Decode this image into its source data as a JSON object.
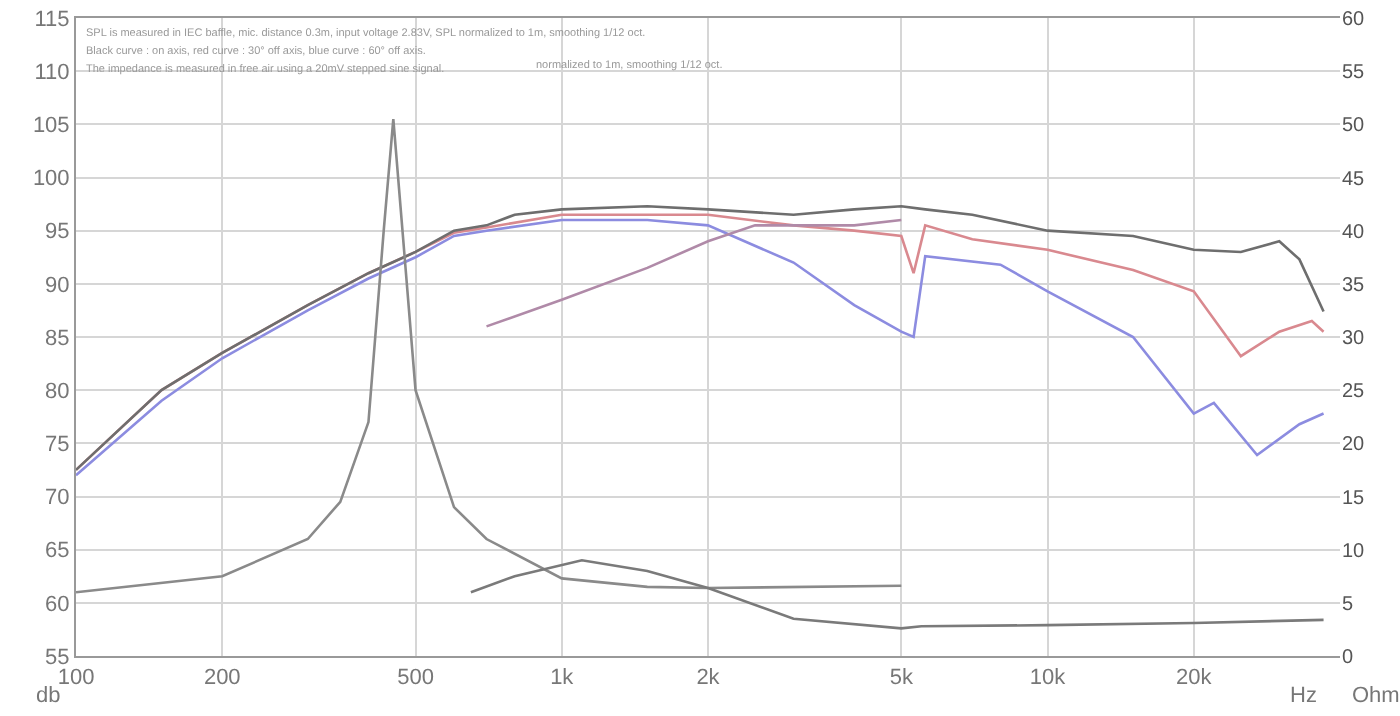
{
  "chart_data": {
    "type": "line",
    "xlabel": "Hz",
    "ylabel": "db",
    "y2label": "Ohm",
    "annotations": [
      "SPL is measured in IEC baffle, mic. distance 0.3m, input voltage 2.83V, SPL normalized to 1m, smoothing 1/12 oct.",
      "Black curve : on axis, red curve : 30° off axis, blue curve : 60° off axis.",
      "The impedance is measured in free air using a 20mV stepped sine signal.",
      "normalized to 1m, smoothing 1/12 oct."
    ],
    "log": "x",
    "grid": true,
    "marker": "none",
    "line_style": "solid",
    "xlim": [
      100,
      40000
    ],
    "xticks": [
      {
        "value": 100,
        "label": "100"
      },
      {
        "value": 200,
        "label": "200"
      },
      {
        "value": 500,
        "label": "500"
      },
      {
        "value": 1000,
        "label": "1k"
      },
      {
        "value": 2000,
        "label": "2k"
      },
      {
        "value": 5000,
        "label": "5k"
      },
      {
        "value": 10000,
        "label": "10k"
      },
      {
        "value": 20000,
        "label": "20k"
      }
    ],
    "ylim": [
      55,
      115
    ],
    "yticks": [
      55,
      60,
      65,
      70,
      75,
      80,
      85,
      90,
      95,
      100,
      105,
      110,
      115
    ],
    "y2lim": [
      0,
      60
    ],
    "y2ticks": [
      0,
      5,
      10,
      15,
      20,
      25,
      30,
      35,
      40,
      45,
      50,
      55,
      60
    ],
    "series": [
      {
        "color": "#d9898f",
        "x": [
          100,
          150,
          200,
          300,
          400,
          500,
          600,
          700,
          1000,
          2000,
          3000,
          4000,
          5000,
          5300,
          5600,
          7000,
          10000,
          15000,
          20000,
          25000,
          30000,
          35000,
          37000
        ],
        "values": [
          72.5,
          80,
          83.5,
          88,
          91,
          93,
          94.8,
          95.3,
          96.5,
          96.5,
          95.5,
          95,
          94.5,
          91,
          95.5,
          94.2,
          93.2,
          91.3,
          89.3,
          83.2,
          85.5,
          86.5,
          85.5
        ]
      },
      {
        "color": "#8c8ce0",
        "x": [
          100,
          150,
          200,
          300,
          400,
          500,
          600,
          700,
          1000,
          1500,
          2000,
          3000,
          4000,
          5000,
          5300,
          5600,
          8000,
          10000,
          15000,
          20000,
          22000,
          27000,
          33000,
          37000
        ],
        "values": [
          72,
          79,
          83,
          87.5,
          90.5,
          92.5,
          94.5,
          95,
          96,
          96,
          95.5,
          92,
          88,
          85.5,
          85,
          92.6,
          91.8,
          89.3,
          85,
          77.8,
          78.8,
          73.9,
          76.8,
          77.8
        ]
      },
      {
        "color": "#b08aa8",
        "x": [
          700,
          1000,
          1500,
          2000,
          2500,
          3000,
          4000,
          5000
        ],
        "values": [
          86,
          88.5,
          91.5,
          94,
          95.5,
          95.5,
          95.5,
          96
        ]
      },
      {
        "color": "#6e6e6e",
        "x": [
          100,
          150,
          200,
          300,
          400,
          500,
          600,
          700,
          800,
          1000,
          1500,
          2000,
          3000,
          4000,
          5000,
          5600,
          7000,
          10000,
          15000,
          20000,
          25000,
          30000,
          33000,
          37000
        ],
        "values": [
          72.5,
          80,
          83.5,
          88,
          91,
          93,
          95,
          95.5,
          96.5,
          97,
          97.3,
          97,
          96.5,
          97,
          97.3,
          97,
          96.5,
          95,
          94.5,
          93.2,
          93,
          94,
          92.3,
          87.4
        ]
      },
      {
        "color": "#8a8a8a",
        "axis": "y2",
        "x": [
          100,
          200,
          300,
          350,
          400,
          430,
          450,
          470,
          500,
          600,
          700,
          1000,
          1500,
          2000,
          5000
        ],
        "values": [
          6,
          7.5,
          11,
          14.5,
          22,
          40,
          50.5,
          40,
          25,
          14,
          11,
          7.3,
          6.5,
          6.4,
          6.6
        ]
      },
      {
        "color": "#7a7a7a",
        "axis": "y2",
        "x": [
          650,
          800,
          1100,
          1500,
          2000,
          3000,
          5000,
          5500,
          10000,
          20000,
          37000
        ],
        "values": [
          6,
          7.5,
          9,
          8,
          6.4,
          3.5,
          2.6,
          2.8,
          2.9,
          3.1,
          3.4
        ]
      }
    ]
  }
}
